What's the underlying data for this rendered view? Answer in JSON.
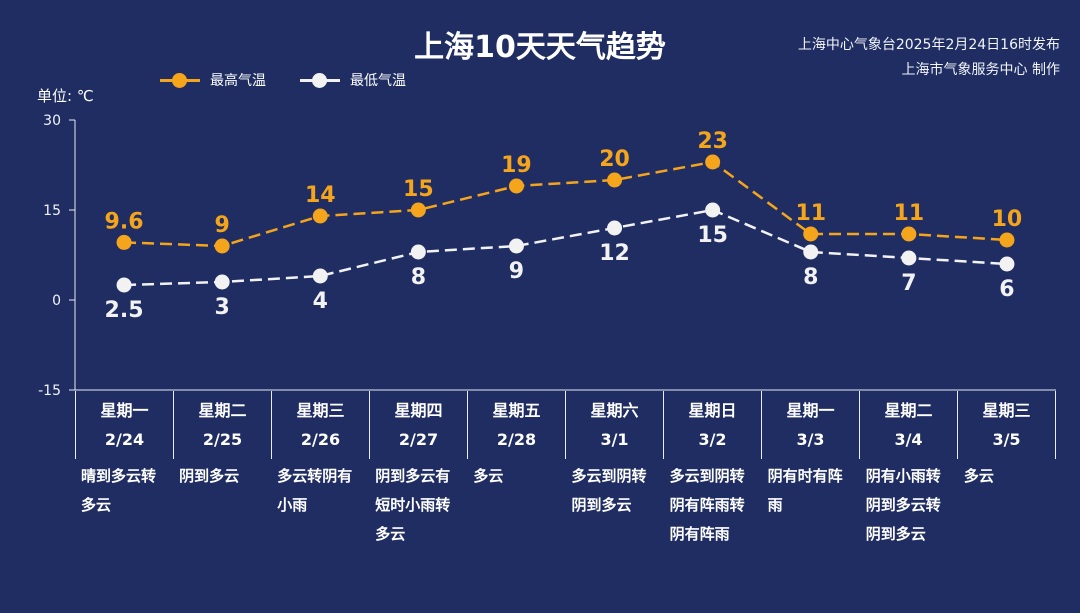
{
  "title": "上海10天天气趋势",
  "issuer": {
    "line1": "上海中心气象台2025年2月24日16时发布",
    "line2": "上海市气象服务中心 制作"
  },
  "unit_label": "单位: ℃",
  "colors": {
    "background": "#1f2d62",
    "high": "#f5a51b",
    "low": "#f2f2f2"
  },
  "days": [
    {
      "weekday": "星期一",
      "date": "2/24",
      "weather": "晴到多云转多云"
    },
    {
      "weekday": "星期二",
      "date": "2/25",
      "weather": "阴到多云"
    },
    {
      "weekday": "星期三",
      "date": "2/26",
      "weather": "多云转阴有小雨"
    },
    {
      "weekday": "星期四",
      "date": "2/27",
      "weather": "阴到多云有短时小雨转多云"
    },
    {
      "weekday": "星期五",
      "date": "2/28",
      "weather": "多云"
    },
    {
      "weekday": "星期六",
      "date": "3/1",
      "weather": "多云到阴转阴到多云"
    },
    {
      "weekday": "星期日",
      "date": "3/2",
      "weather": "多云到阴转阴有阵雨转阴有阵雨"
    },
    {
      "weekday": "星期一",
      "date": "3/3",
      "weather": "阴有时有阵雨"
    },
    {
      "weekday": "星期二",
      "date": "3/4",
      "weather": "阴有小雨转阴到多云转阴到多云"
    },
    {
      "weekday": "星期三",
      "date": "3/5",
      "weather": "多云"
    }
  ],
  "chart_data": {
    "type": "line",
    "title": "上海10天天气趋势",
    "ylabel": "单位: ℃",
    "ylim": [
      -15,
      30
    ],
    "yticks": [
      30,
      15,
      0,
      -15
    ],
    "categories": [
      "2/24",
      "2/25",
      "2/26",
      "2/27",
      "2/28",
      "3/1",
      "3/2",
      "3/3",
      "3/4",
      "3/5"
    ],
    "series": [
      {
        "name": "最高气温",
        "values": [
          9.6,
          9,
          14,
          15,
          19,
          20,
          23,
          11,
          11,
          10
        ],
        "labels": [
          "9.6",
          "9",
          "14",
          "15",
          "19",
          "20",
          "23",
          "11",
          "11",
          "10"
        ]
      },
      {
        "name": "最低气温",
        "values": [
          2.5,
          3,
          4,
          8,
          9,
          12,
          15,
          8,
          7,
          6
        ],
        "labels": [
          "2.5",
          "3",
          "4",
          "8",
          "9",
          "12",
          "15",
          "8",
          "7",
          "6"
        ]
      }
    ],
    "legend": "top-left"
  }
}
